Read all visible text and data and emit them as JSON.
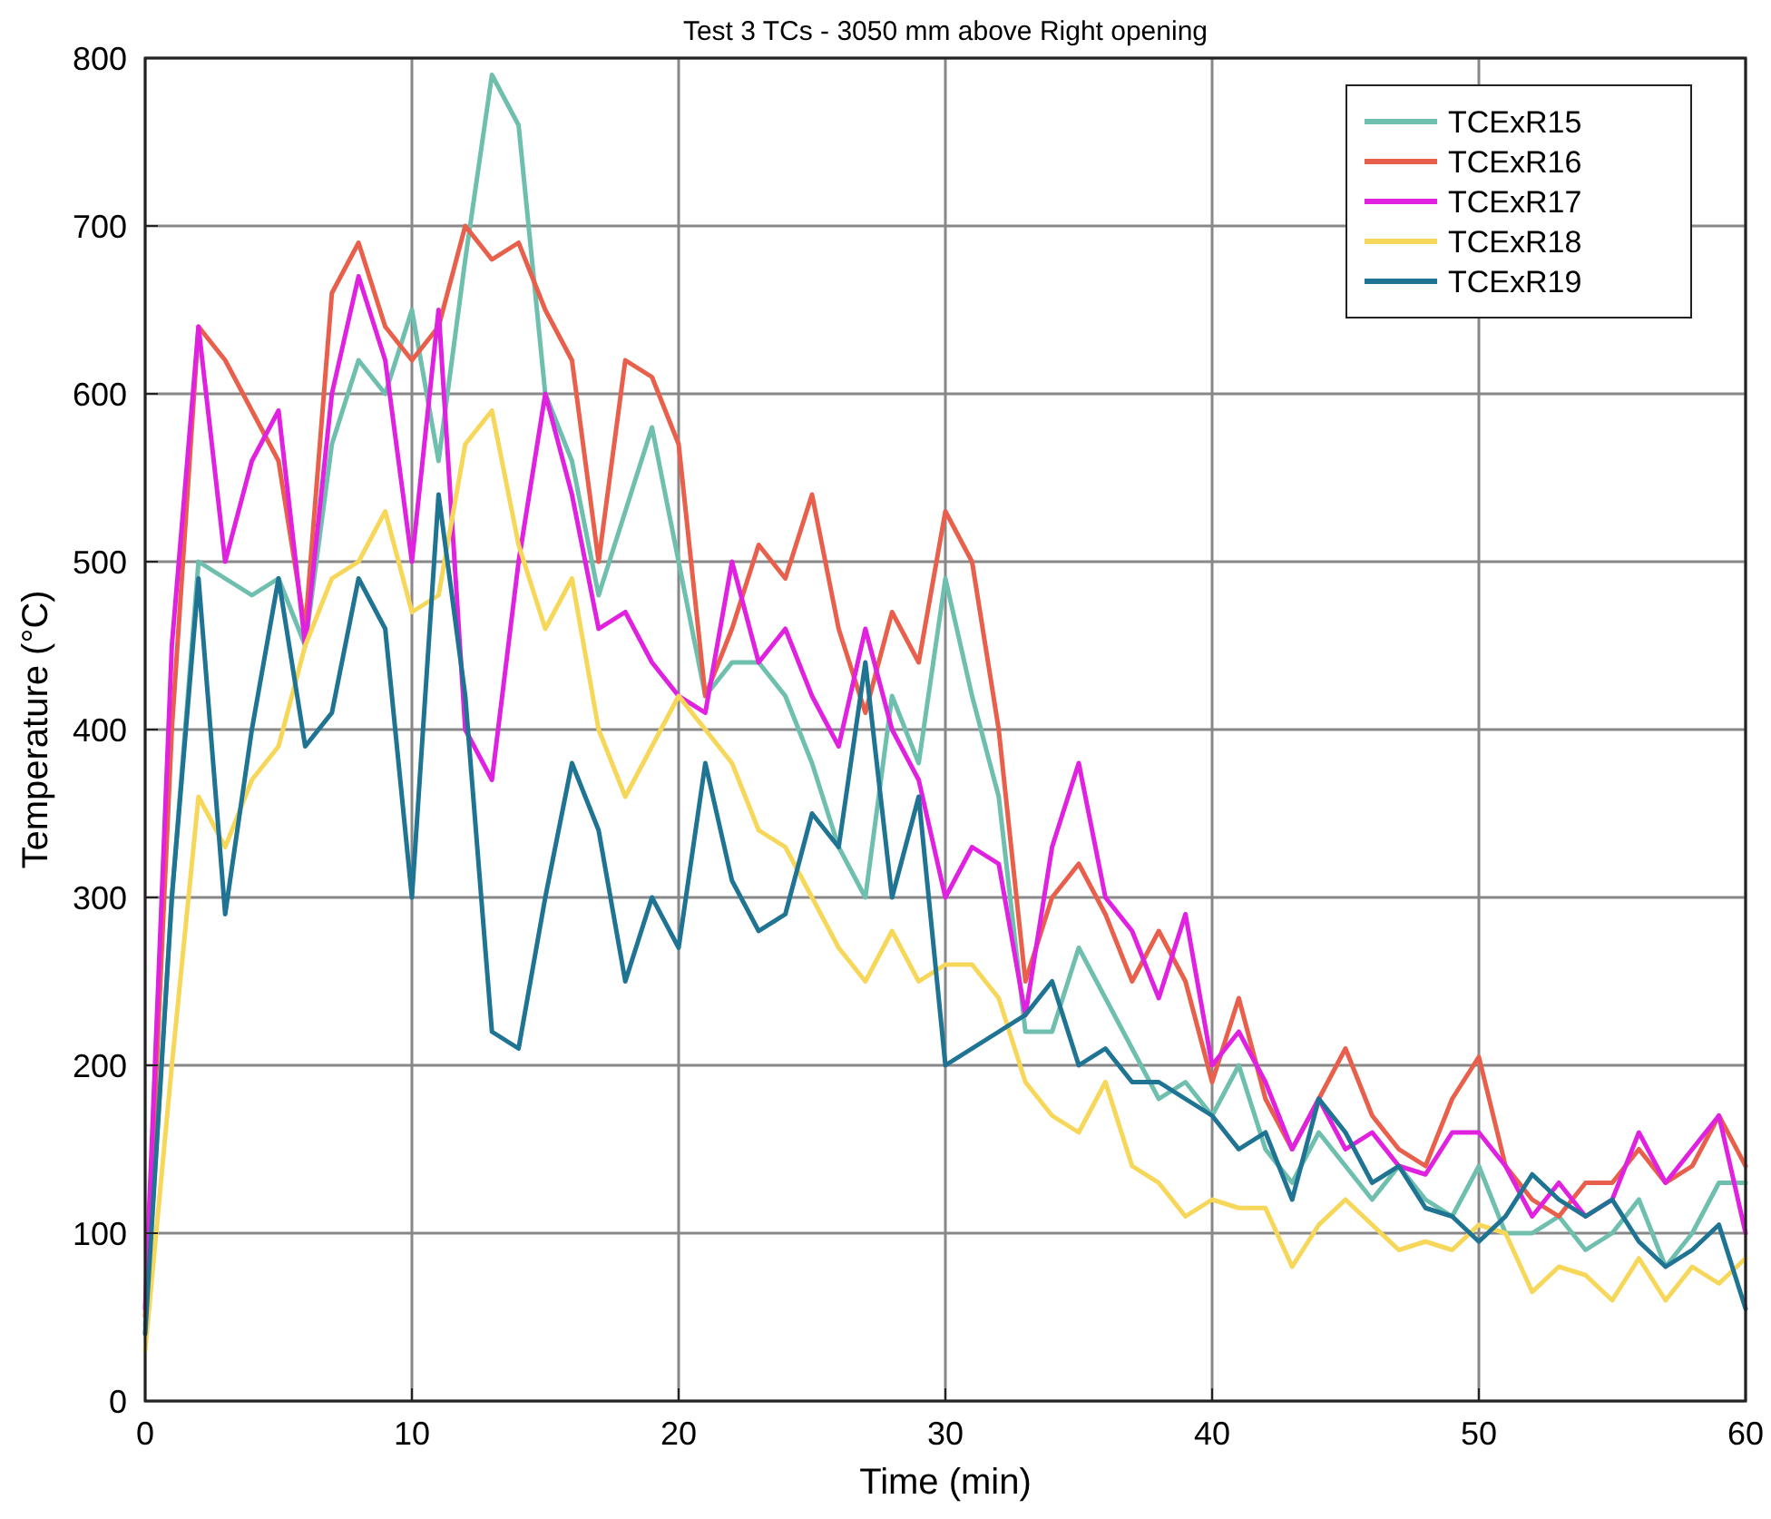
{
  "chart_data": {
    "type": "line",
    "title": "Test 3 TCs - 3050 mm above Right opening",
    "xlabel": "Time (min)",
    "ylabel": "Temperature (°C)",
    "x": [
      0,
      1,
      2,
      3,
      4,
      5,
      6,
      7,
      8,
      9,
      10,
      11,
      12,
      13,
      14,
      15,
      16,
      17,
      18,
      19,
      20,
      21,
      22,
      23,
      24,
      25,
      26,
      27,
      28,
      29,
      30,
      31,
      32,
      33,
      34,
      35,
      36,
      37,
      38,
      39,
      40,
      41,
      42,
      43,
      44,
      45,
      46,
      47,
      48,
      49,
      50,
      51,
      52,
      53,
      54,
      55,
      56,
      57,
      58,
      59,
      60
    ],
    "xlim": [
      0,
      60
    ],
    "xticks": [
      0,
      10,
      20,
      30,
      40,
      50,
      60
    ],
    "ylim": [
      0,
      800
    ],
    "yticks": [
      0,
      100,
      200,
      300,
      400,
      500,
      600,
      700,
      800
    ],
    "grid": true,
    "legend": "top right",
    "line_style": "solid",
    "series": [
      {
        "name": "TCExR15",
        "color": "#6fbfae",
        "values": [
          45,
          300,
          500,
          490,
          480,
          490,
          450,
          570,
          620,
          600,
          650,
          560,
          680,
          790,
          760,
          600,
          560,
          480,
          530,
          580,
          500,
          420,
          440,
          440,
          420,
          380,
          330,
          300,
          420,
          380,
          490,
          420,
          360,
          220,
          220,
          270,
          240,
          210,
          180,
          190,
          170,
          200,
          150,
          130,
          160,
          140,
          120,
          140,
          120,
          110,
          140,
          100,
          100,
          110,
          90,
          100,
          120,
          80,
          100,
          130,
          130
        ]
      },
      {
        "name": "TCExR16",
        "color": "#e8604c",
        "values": [
          50,
          400,
          640,
          620,
          590,
          560,
          460,
          660,
          690,
          640,
          620,
          640,
          700,
          680,
          690,
          650,
          620,
          500,
          620,
          610,
          570,
          420,
          460,
          510,
          490,
          540,
          460,
          410,
          470,
          440,
          530,
          500,
          400,
          250,
          300,
          320,
          290,
          250,
          280,
          250,
          190,
          240,
          180,
          150,
          180,
          210,
          170,
          150,
          140,
          180,
          205,
          140,
          120,
          110,
          130,
          130,
          150,
          130,
          140,
          170,
          140
        ]
      },
      {
        "name": "TCExR17",
        "color": "#e022e0",
        "values": [
          55,
          450,
          640,
          500,
          560,
          590,
          450,
          600,
          670,
          620,
          500,
          650,
          400,
          370,
          500,
          600,
          540,
          460,
          470,
          440,
          420,
          410,
          500,
          440,
          460,
          420,
          390,
          460,
          400,
          370,
          300,
          330,
          320,
          230,
          330,
          380,
          300,
          280,
          240,
          290,
          200,
          220,
          190,
          150,
          180,
          150,
          160,
          140,
          135,
          160,
          160,
          140,
          110,
          130,
          110,
          120,
          160,
          130,
          150,
          170,
          100
        ]
      },
      {
        "name": "TCExR18",
        "color": "#f7d75a",
        "values": [
          30,
          200,
          360,
          330,
          370,
          390,
          450,
          490,
          500,
          530,
          470,
          480,
          570,
          590,
          510,
          460,
          490,
          400,
          360,
          390,
          420,
          400,
          380,
          340,
          330,
          300,
          270,
          250,
          280,
          250,
          260,
          260,
          240,
          190,
          170,
          160,
          190,
          140,
          130,
          110,
          120,
          115,
          115,
          80,
          105,
          120,
          105,
          90,
          95,
          90,
          105,
          100,
          65,
          80,
          75,
          60,
          85,
          60,
          80,
          70,
          85
        ]
      },
      {
        "name": "TCExR19",
        "color": "#1f7393",
        "values": [
          40,
          300,
          490,
          290,
          400,
          490,
          390,
          410,
          490,
          460,
          300,
          540,
          420,
          220,
          210,
          300,
          380,
          340,
          250,
          300,
          270,
          380,
          310,
          280,
          290,
          350,
          330,
          440,
          300,
          360,
          200,
          210,
          220,
          230,
          250,
          200,
          210,
          190,
          190,
          180,
          170,
          150,
          160,
          120,
          180,
          160,
          130,
          140,
          115,
          110,
          95,
          110,
          135,
          120,
          110,
          120,
          95,
          80,
          90,
          105,
          55
        ]
      }
    ]
  }
}
